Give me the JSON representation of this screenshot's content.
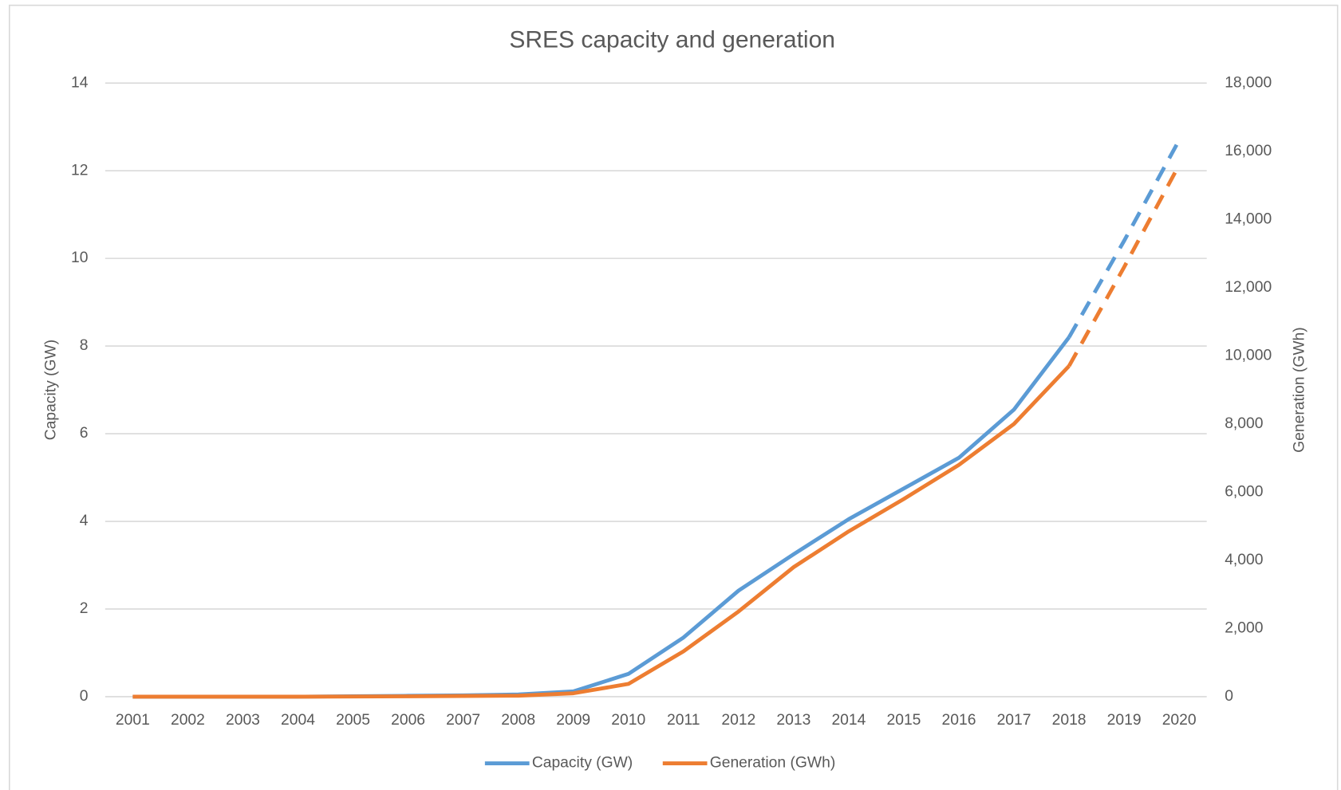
{
  "chart_data": {
    "type": "line",
    "title": "SRES capacity and generation",
    "ylabel": "Capacity (GW)",
    "y2label": "Generation (GWh)",
    "categories": [
      "2001",
      "2002",
      "2003",
      "2004",
      "2005",
      "2006",
      "2007",
      "2008",
      "2009",
      "2010",
      "2011",
      "2012",
      "2013",
      "2014",
      "2015",
      "2016",
      "2017",
      "2018",
      "2019",
      "2020"
    ],
    "projected_from": "2018",
    "series": [
      {
        "name": "Capacity (GW)",
        "color": "#5b9bd5",
        "axis": "y",
        "values": [
          0,
          0,
          0,
          0,
          0.01,
          0.02,
          0.03,
          0.05,
          0.12,
          0.52,
          1.35,
          2.42,
          3.25,
          4.05,
          4.75,
          5.45,
          6.55,
          8.2,
          10.4,
          12.7
        ]
      },
      {
        "name": "Generation (GWh)",
        "color": "#ed7d31",
        "axis": "y2",
        "values": [
          0,
          0,
          0,
          0,
          5,
          10,
          20,
          30,
          100,
          375,
          1330,
          2500,
          3800,
          4850,
          5800,
          6800,
          8000,
          9700,
          12600,
          15600
        ]
      }
    ],
    "ylim": [
      0,
      14
    ],
    "yticks": [
      0,
      2,
      4,
      6,
      8,
      10,
      12,
      14
    ],
    "y2lim": [
      0,
      18000
    ],
    "y2ticks": [
      0,
      {
        "value": 2000,
        "label": "2,000"
      },
      {
        "value": 4000,
        "label": "4,000"
      },
      {
        "value": 6000,
        "label": "6,000"
      },
      {
        "value": 8000,
        "label": "8,000"
      },
      {
        "value": 10000,
        "label": "10,000"
      },
      {
        "value": 12000,
        "label": "12,000"
      },
      {
        "value": 14000,
        "label": "14,000"
      },
      {
        "value": 16000,
        "label": "16,000"
      },
      {
        "value": 18000,
        "label": "18,000"
      }
    ],
    "grid": true,
    "legend": "bottom"
  }
}
